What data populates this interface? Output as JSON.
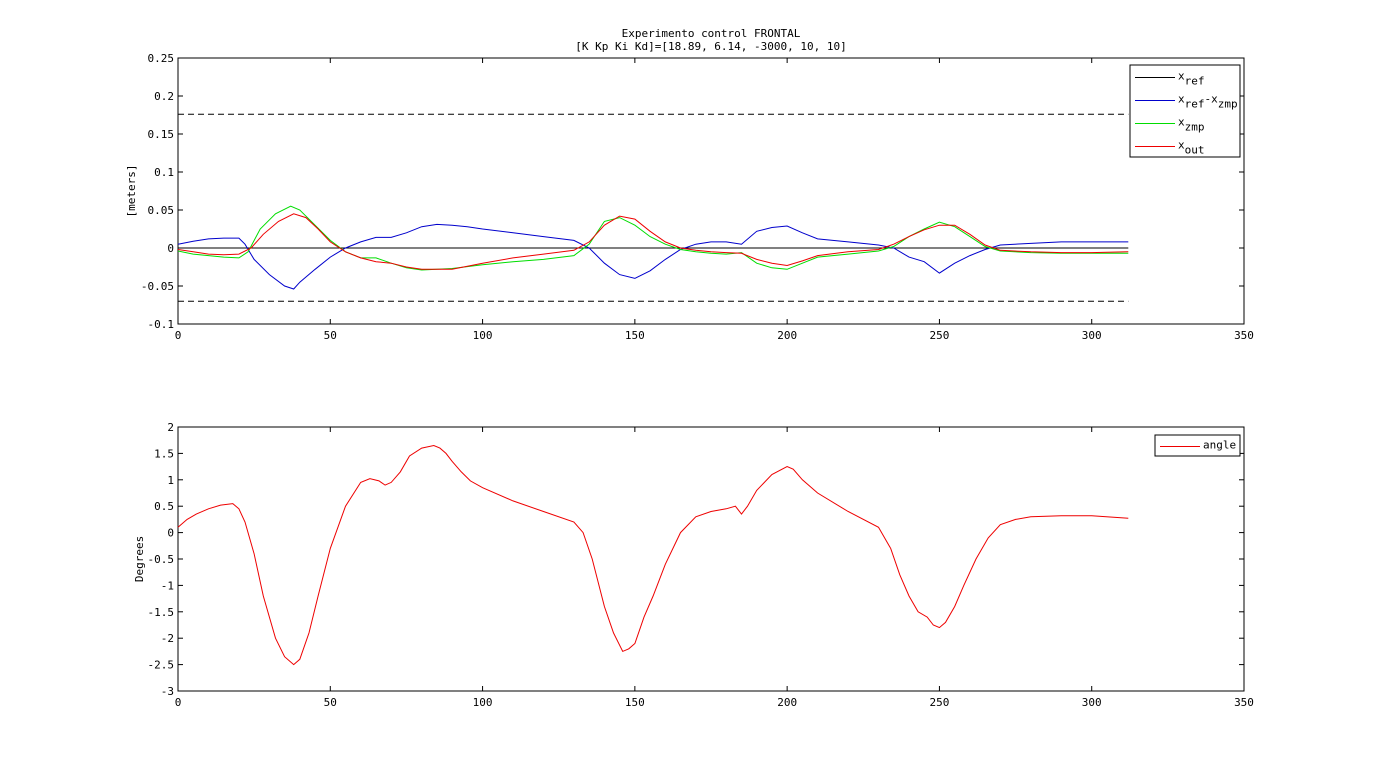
{
  "figure": {
    "title_line1": "Experimento control FRONTAL",
    "title_line2": "[K Kp Ki Kd]=[18.89, 6.14, -3000, 10, 10]"
  },
  "chart_data": [
    {
      "type": "line",
      "ylabel": "[meters]",
      "xlim": [
        0,
        350
      ],
      "ylim": [
        -0.1,
        0.25
      ],
      "xticks": [
        0,
        50,
        100,
        150,
        200,
        250,
        300,
        350
      ],
      "yticks": [
        -0.1,
        -0.05,
        0,
        0.05,
        0.1,
        0.15,
        0.2,
        0.25
      ],
      "ytick_labels": [
        "-0.1",
        "-0.05",
        "0",
        "0.05",
        "0.1",
        "0.15",
        "0.2",
        "0.25"
      ],
      "grid": false,
      "legend_position": "top-right",
      "series": [
        {
          "name": "x_ref",
          "legend_main": "x",
          "legend_sub": "ref",
          "color": "#000000",
          "dash": "",
          "x": [
            0,
            312
          ],
          "y": [
            0,
            0
          ]
        },
        {
          "name": "x_ref - x_zmp",
          "legend_main": "x",
          "legend_sub": "ref",
          "legend_main2": "-x",
          "legend_sub2": "zmp",
          "color": "#0000cc",
          "dash": "",
          "x": [
            0,
            5,
            10,
            15,
            20,
            22,
            25,
            30,
            35,
            38,
            40,
            45,
            50,
            55,
            60,
            65,
            70,
            75,
            80,
            85,
            90,
            95,
            100,
            110,
            120,
            130,
            135,
            140,
            145,
            150,
            155,
            160,
            165,
            170,
            175,
            180,
            185,
            190,
            195,
            200,
            205,
            210,
            220,
            230,
            235,
            240,
            245,
            250,
            255,
            260,
            265,
            270,
            280,
            290,
            300,
            312
          ],
          "y": [
            0.005,
            0.009,
            0.012,
            0.013,
            0.013,
            0.005,
            -0.015,
            -0.035,
            -0.05,
            -0.054,
            -0.045,
            -0.028,
            -0.012,
            0.0,
            0.008,
            0.014,
            0.014,
            0.02,
            0.028,
            0.031,
            0.03,
            0.028,
            0.025,
            0.02,
            0.015,
            0.01,
            0.0,
            -0.02,
            -0.035,
            -0.04,
            -0.03,
            -0.015,
            -0.002,
            0.005,
            0.008,
            0.008,
            0.005,
            0.022,
            0.027,
            0.029,
            0.02,
            0.012,
            0.008,
            0.004,
            0.0,
            -0.012,
            -0.018,
            -0.033,
            -0.02,
            -0.01,
            -0.002,
            0.004,
            0.006,
            0.008,
            0.008,
            0.008
          ]
        },
        {
          "name": "x_zmp",
          "legend_main": "x",
          "legend_sub": "zmp",
          "color": "#00dd00",
          "dash": "",
          "x": [
            0,
            5,
            10,
            15,
            20,
            23,
            27,
            32,
            37,
            40,
            45,
            50,
            55,
            60,
            65,
            70,
            75,
            80,
            90,
            100,
            110,
            120,
            130,
            135,
            140,
            145,
            150,
            155,
            160,
            165,
            170,
            175,
            180,
            185,
            190,
            195,
            200,
            205,
            210,
            220,
            230,
            235,
            240,
            245,
            250,
            255,
            260,
            265,
            270,
            280,
            290,
            300,
            312
          ],
          "y": [
            -0.004,
            -0.008,
            -0.01,
            -0.012,
            -0.013,
            -0.005,
            0.025,
            0.045,
            0.055,
            0.05,
            0.03,
            0.01,
            -0.005,
            -0.013,
            -0.013,
            -0.02,
            -0.026,
            -0.029,
            -0.027,
            -0.022,
            -0.018,
            -0.015,
            -0.01,
            0.005,
            0.035,
            0.04,
            0.03,
            0.015,
            0.005,
            -0.002,
            -0.005,
            -0.007,
            -0.008,
            -0.006,
            -0.02,
            -0.026,
            -0.028,
            -0.02,
            -0.012,
            -0.008,
            -0.004,
            0.002,
            0.015,
            0.025,
            0.034,
            0.028,
            0.015,
            0.002,
            -0.004,
            -0.006,
            -0.007,
            -0.007,
            -0.007
          ]
        },
        {
          "name": "x_out",
          "legend_main": "x",
          "legend_sub": "out",
          "color": "#ee0000",
          "dash": "",
          "x": [
            0,
            5,
            10,
            15,
            20,
            24,
            28,
            33,
            38,
            42,
            46,
            50,
            55,
            60,
            65,
            70,
            75,
            80,
            90,
            100,
            110,
            120,
            130,
            135,
            140,
            145,
            150,
            155,
            160,
            165,
            170,
            175,
            180,
            185,
            190,
            195,
            200,
            205,
            210,
            220,
            230,
            235,
            240,
            245,
            250,
            255,
            260,
            265,
            270,
            280,
            290,
            300,
            312
          ],
          "y": [
            -0.002,
            -0.005,
            -0.008,
            -0.009,
            -0.008,
            0.0,
            0.018,
            0.035,
            0.045,
            0.04,
            0.025,
            0.008,
            -0.005,
            -0.013,
            -0.018,
            -0.02,
            -0.025,
            -0.028,
            -0.028,
            -0.02,
            -0.013,
            -0.008,
            -0.003,
            0.008,
            0.03,
            0.042,
            0.038,
            0.022,
            0.008,
            0.0,
            -0.003,
            -0.005,
            -0.006,
            -0.007,
            -0.015,
            -0.02,
            -0.023,
            -0.017,
            -0.01,
            -0.005,
            -0.002,
            0.005,
            0.015,
            0.024,
            0.03,
            0.03,
            0.018,
            0.004,
            -0.003,
            -0.005,
            -0.006,
            -0.006,
            -0.005
          ]
        },
        {
          "name": "upper limit",
          "color": "#000000",
          "dash": "6,4",
          "x": [
            0,
            312
          ],
          "y": [
            0.176,
            0.176
          ]
        },
        {
          "name": "lower limit",
          "color": "#000000",
          "dash": "6,4",
          "x": [
            0,
            312
          ],
          "y": [
            -0.07,
            -0.07
          ]
        }
      ]
    },
    {
      "type": "line",
      "ylabel": "Degrees",
      "xlim": [
        0,
        350
      ],
      "ylim": [
        -3,
        2
      ],
      "xticks": [
        0,
        50,
        100,
        150,
        200,
        250,
        300,
        350
      ],
      "yticks": [
        -3,
        -2.5,
        -2,
        -1.5,
        -1,
        -0.5,
        0,
        0.5,
        1,
        1.5,
        2
      ],
      "ytick_labels": [
        "-3",
        "-2.5",
        "-2",
        "-1.5",
        "-1",
        "-0.5",
        "0",
        "0.5",
        "1",
        "1.5",
        "2"
      ],
      "grid": false,
      "legend_position": "top-right",
      "series": [
        {
          "name": "angle",
          "legend_main": "angle",
          "color": "#ee0000",
          "dash": "",
          "x": [
            0,
            3,
            6,
            10,
            14,
            18,
            20,
            22,
            25,
            28,
            32,
            35,
            38,
            40,
            43,
            46,
            50,
            55,
            60,
            63,
            66,
            68,
            70,
            73,
            76,
            80,
            84,
            86,
            88,
            90,
            93,
            96,
            100,
            110,
            120,
            130,
            133,
            136,
            140,
            143,
            146,
            148,
            150,
            153,
            156,
            160,
            165,
            170,
            175,
            180,
            183,
            185,
            187,
            190,
            195,
            200,
            202,
            205,
            210,
            220,
            230,
            234,
            237,
            240,
            243,
            246,
            248,
            250,
            252,
            255,
            258,
            262,
            266,
            270,
            275,
            280,
            290,
            300,
            312
          ],
          "y": [
            0.1,
            0.25,
            0.35,
            0.45,
            0.52,
            0.55,
            0.45,
            0.2,
            -0.4,
            -1.2,
            -2.0,
            -2.35,
            -2.5,
            -2.4,
            -1.9,
            -1.2,
            -0.3,
            0.5,
            0.95,
            1.02,
            0.98,
            0.9,
            0.95,
            1.15,
            1.45,
            1.6,
            1.65,
            1.6,
            1.5,
            1.35,
            1.15,
            0.98,
            0.85,
            0.6,
            0.4,
            0.2,
            0.0,
            -0.5,
            -1.4,
            -1.9,
            -2.25,
            -2.2,
            -2.1,
            -1.6,
            -1.2,
            -0.6,
            0.0,
            0.3,
            0.4,
            0.45,
            0.5,
            0.35,
            0.5,
            0.8,
            1.1,
            1.25,
            1.2,
            1.0,
            0.75,
            0.4,
            0.1,
            -0.3,
            -0.8,
            -1.2,
            -1.5,
            -1.6,
            -1.75,
            -1.8,
            -1.7,
            -1.4,
            -1.0,
            -0.5,
            -0.1,
            0.15,
            0.25,
            0.3,
            0.32,
            0.32,
            0.27
          ]
        }
      ]
    }
  ]
}
